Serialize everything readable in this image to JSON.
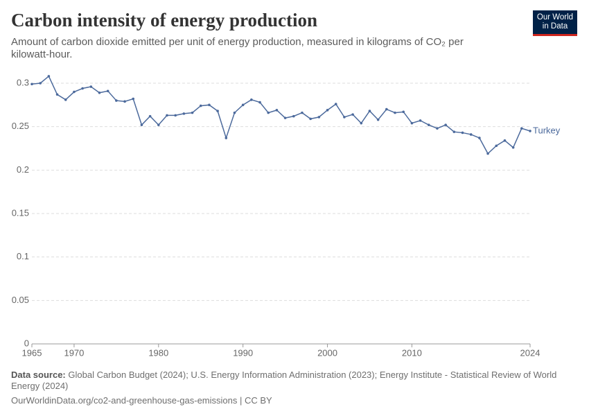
{
  "chart_data": {
    "type": "line",
    "title": "Carbon intensity of energy production",
    "subtitle": "Amount of carbon dioxide emitted per unit of energy production, measured in kilograms of CO₂ per kilowatt-hour.",
    "x": [
      1965,
      1966,
      1967,
      1968,
      1969,
      1970,
      1971,
      1972,
      1973,
      1974,
      1975,
      1976,
      1977,
      1978,
      1979,
      1980,
      1981,
      1982,
      1983,
      1984,
      1985,
      1986,
      1987,
      1988,
      1989,
      1990,
      1991,
      1992,
      1993,
      1994,
      1995,
      1996,
      1997,
      1998,
      1999,
      2000,
      2001,
      2002,
      2003,
      2004,
      2005,
      2006,
      2007,
      2008,
      2009,
      2010,
      2011,
      2012,
      2013,
      2014,
      2015,
      2016,
      2017,
      2018,
      2019,
      2020,
      2021,
      2022,
      2023,
      2024
    ],
    "series": [
      {
        "name": "Turkey",
        "color": "#4c6a9c",
        "values": [
          0.299,
          0.3,
          0.308,
          0.287,
          0.281,
          0.29,
          0.294,
          0.296,
          0.289,
          0.291,
          0.28,
          0.279,
          0.282,
          0.252,
          0.262,
          0.252,
          0.263,
          0.263,
          0.265,
          0.266,
          0.274,
          0.275,
          0.268,
          0.237,
          0.266,
          0.275,
          0.281,
          0.278,
          0.266,
          0.269,
          0.26,
          0.262,
          0.266,
          0.259,
          0.261,
          0.269,
          0.276,
          0.261,
          0.264,
          0.254,
          0.268,
          0.258,
          0.27,
          0.266,
          0.267,
          0.254,
          0.257,
          0.252,
          0.248,
          0.252,
          0.244,
          0.243,
          0.241,
          0.237,
          0.219,
          0.228,
          0.234,
          0.226,
          0.248,
          0.245
        ]
      }
    ],
    "xlim": [
      1965,
      2024
    ],
    "xticks": [
      1965,
      1970,
      1980,
      1990,
      2000,
      2010,
      2024
    ],
    "ylim": [
      0,
      0.3
    ],
    "yticks": [
      0,
      0.05,
      0.1,
      0.15,
      0.2,
      0.25,
      0.3
    ],
    "grid": true,
    "source_label": "Data source:",
    "source": "Global Carbon Budget (2024); U.S. Energy Information Administration (2023); Energy Institute - Statistical Review of World Energy (2024)",
    "url": "OurWorldinData.org/co2-and-greenhouse-gas-emissions | CC BY"
  },
  "logo": {
    "line1": "Our World",
    "line2": "in Data"
  }
}
